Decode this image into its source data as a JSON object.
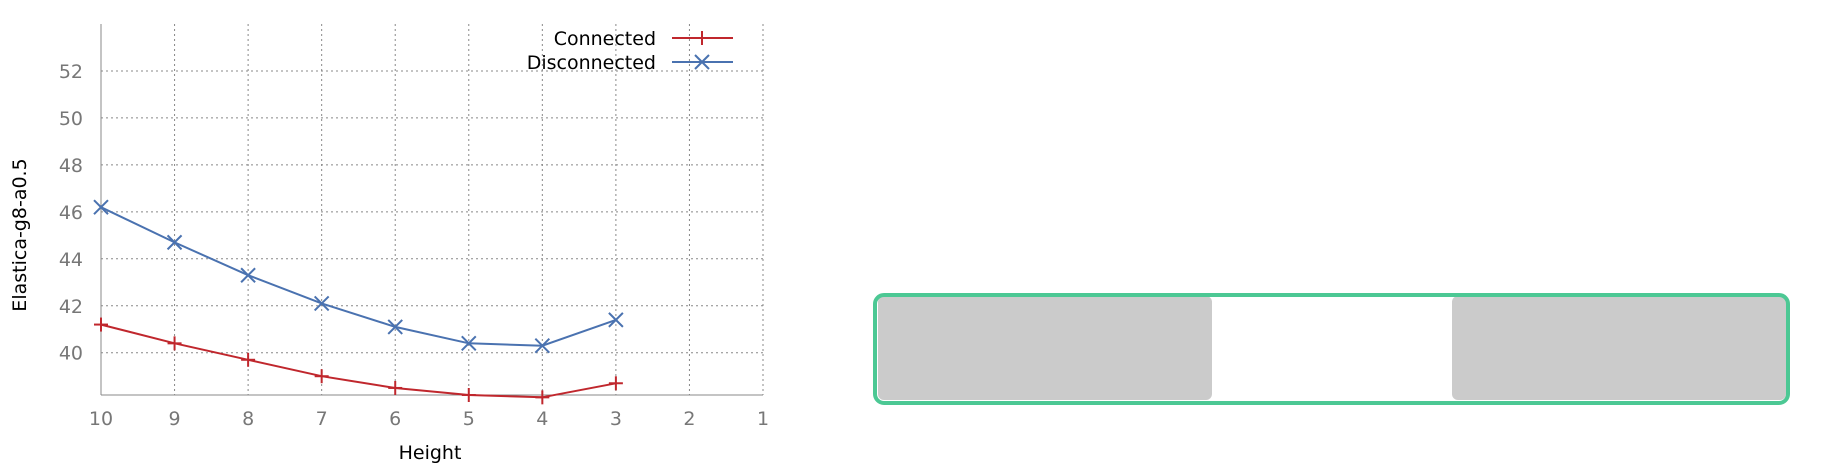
{
  "chart_data": {
    "type": "line",
    "xlabel": "Height",
    "ylabel": "Elastica-g8-a0.5",
    "xlim": [
      10,
      1
    ],
    "ylim": [
      38.2,
      54
    ],
    "x_ticks": [
      "10",
      "9",
      "8",
      "7",
      "6",
      "5",
      "4",
      "3",
      "2",
      "1"
    ],
    "y_ticks": [
      "40",
      "42",
      "44",
      "46",
      "48",
      "50",
      "52"
    ],
    "grid": true,
    "legend_position": "top-right",
    "series": [
      {
        "name": "Connected",
        "color": "#c0272d",
        "marker": "plus",
        "x": [
          10,
          9,
          8,
          7,
          6,
          5,
          4,
          3
        ],
        "y": [
          41.2,
          40.4,
          39.7,
          39.0,
          38.5,
          38.2,
          38.1,
          38.7
        ]
      },
      {
        "name": "Disconnected",
        "color": "#4a72b0",
        "marker": "cross",
        "x": [
          10,
          9,
          8,
          7,
          6,
          5,
          4,
          3
        ],
        "y": [
          46.2,
          44.7,
          43.3,
          42.1,
          41.1,
          40.4,
          40.3,
          41.4
        ]
      }
    ]
  },
  "diagram": {
    "border_color": "#4cc894",
    "block_color": "#cbcbcb"
  }
}
